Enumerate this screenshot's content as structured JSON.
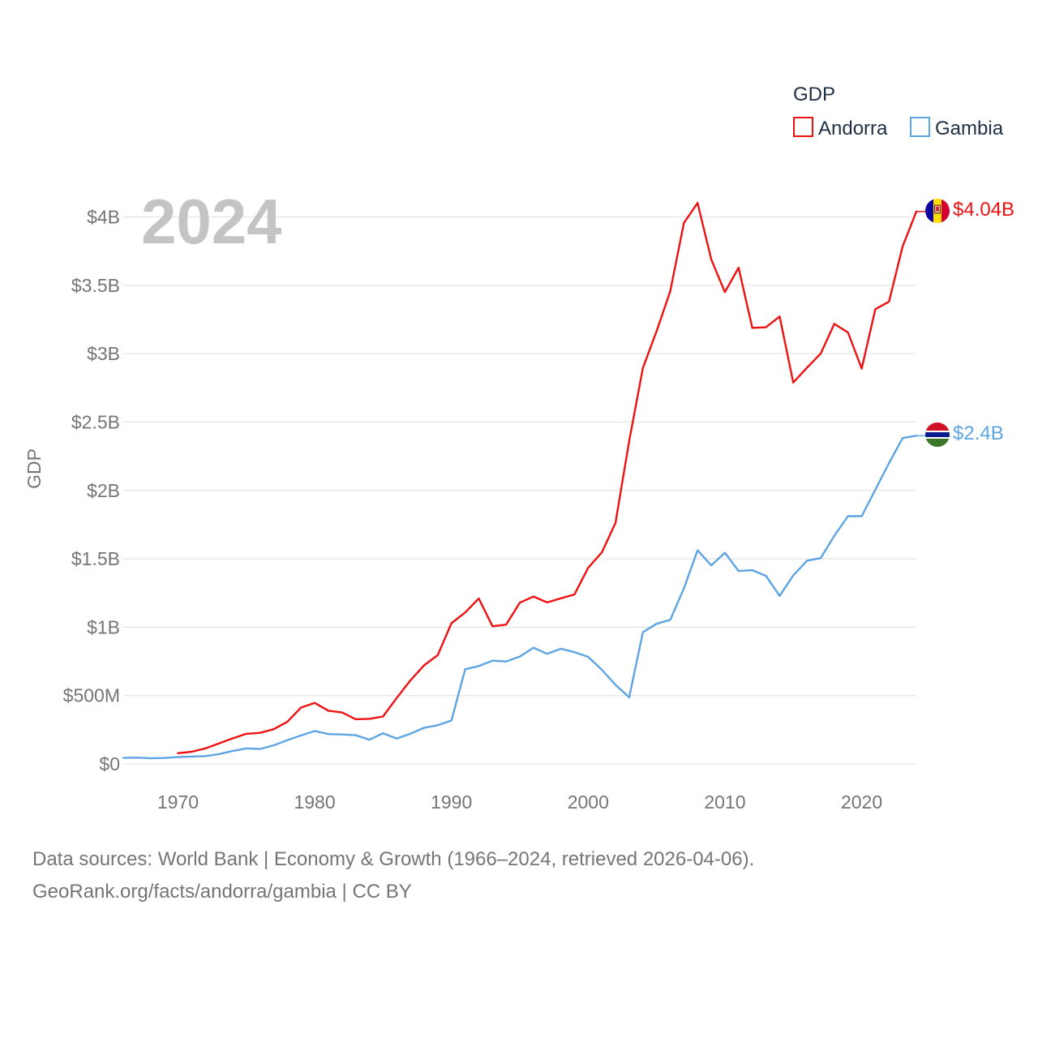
{
  "chart_data": {
    "type": "line",
    "current_year_label": "2024",
    "ylabel": "GDP",
    "xlim": [
      1966,
      2024
    ],
    "ylim": [
      0,
      4000000000
    ],
    "y_ticks": [
      {
        "value": 0,
        "label": "$0"
      },
      {
        "value": 500000000,
        "label": "$500M"
      },
      {
        "value": 1000000000,
        "label": "$1B"
      },
      {
        "value": 1500000000,
        "label": "$1.5B"
      },
      {
        "value": 2000000000,
        "label": "$2B"
      },
      {
        "value": 2500000000,
        "label": "$2.5B"
      },
      {
        "value": 3000000000,
        "label": "$3B"
      },
      {
        "value": 3500000000,
        "label": "$3.5B"
      },
      {
        "value": 4000000000,
        "label": "$4B"
      }
    ],
    "x_ticks": [
      {
        "value": 1970,
        "label": "1970"
      },
      {
        "value": 1980,
        "label": "1980"
      },
      {
        "value": 1990,
        "label": "1990"
      },
      {
        "value": 2000,
        "label": "2000"
      },
      {
        "value": 2010,
        "label": "2010"
      },
      {
        "value": 2020,
        "label": "2020"
      }
    ],
    "legend": {
      "title": "GDP",
      "position": "top-right"
    },
    "series": [
      {
        "name": "Andorra",
        "color": "#ee1111",
        "end_label": "$4.04B",
        "x": [
          1970,
          1971,
          1972,
          1973,
          1974,
          1975,
          1976,
          1977,
          1978,
          1979,
          1980,
          1981,
          1982,
          1983,
          1984,
          1985,
          1986,
          1987,
          1988,
          1989,
          1990,
          1991,
          1992,
          1993,
          1994,
          1995,
          1996,
          1997,
          1998,
          1999,
          2000,
          2001,
          2002,
          2003,
          2004,
          2005,
          2006,
          2007,
          2008,
          2009,
          2010,
          2011,
          2012,
          2013,
          2014,
          2015,
          2016,
          2017,
          2018,
          2019,
          2020,
          2021,
          2022,
          2023,
          2024
        ],
        "values": [
          78000000,
          89000000,
          113000000,
          150000000,
          187000000,
          220000000,
          227000000,
          254000000,
          308000000,
          412000000,
          446000000,
          389000000,
          376000000,
          327000000,
          330000000,
          347000000,
          482000000,
          611000000,
          721000000,
          795000000,
          1029000000,
          1107000000,
          1210000000,
          1007000000,
          1018000000,
          1179000000,
          1224000000,
          1181000000,
          1211000000,
          1239000000,
          1434000000,
          1547000000,
          1763000000,
          2362000000,
          2896000000,
          3163000000,
          3456000000,
          3955000000,
          4102000000,
          3689000000,
          3450000000,
          3629000000,
          3189000000,
          3193000000,
          3272000000,
          2789000000,
          2897000000,
          3000000000,
          3218000000,
          3155000000,
          2891000000,
          3325000000,
          3381000000,
          3785000000,
          4040000000
        ]
      },
      {
        "name": "Gambia",
        "color": "#5da4e2",
        "end_label": "$2.4B",
        "x": [
          1966,
          1967,
          1968,
          1969,
          1970,
          1971,
          1972,
          1973,
          1974,
          1975,
          1976,
          1977,
          1978,
          1979,
          1980,
          1981,
          1982,
          1983,
          1984,
          1985,
          1986,
          1987,
          1988,
          1989,
          1990,
          1991,
          1992,
          1993,
          1994,
          1995,
          1996,
          1997,
          1998,
          1999,
          2000,
          2001,
          2002,
          2003,
          2004,
          2005,
          2006,
          2007,
          2008,
          2009,
          2010,
          2011,
          2012,
          2013,
          2014,
          2015,
          2016,
          2017,
          2018,
          2019,
          2020,
          2021,
          2022,
          2023,
          2024
        ],
        "values": [
          44000000,
          46000000,
          41000000,
          43000000,
          50000000,
          54000000,
          57000000,
          72000000,
          94000000,
          113000000,
          109000000,
          136000000,
          173000000,
          208000000,
          241000000,
          218000000,
          215000000,
          210000000,
          177000000,
          224000000,
          185000000,
          221000000,
          264000000,
          283000000,
          317000000,
          692000000,
          716000000,
          755000000,
          749000000,
          785000000,
          850000000,
          805000000,
          842000000,
          817000000,
          783000000,
          688000000,
          578000000,
          487000000,
          963000000,
          1025000000,
          1054000000,
          1283000000,
          1562000000,
          1452000000,
          1544000000,
          1411000000,
          1417000000,
          1375000000,
          1229000000,
          1378000000,
          1486000000,
          1505000000,
          1668000000,
          1812000000,
          1812000000,
          2005000000,
          2200000000,
          2383000000,
          2400000000
        ]
      }
    ]
  },
  "footer": {
    "line1": "Data sources: World Bank | Economy & Growth (1966–2024, retrieved 2026-04-06).",
    "line2": "GeoRank.org/facts/andorra/gambia | CC BY"
  }
}
